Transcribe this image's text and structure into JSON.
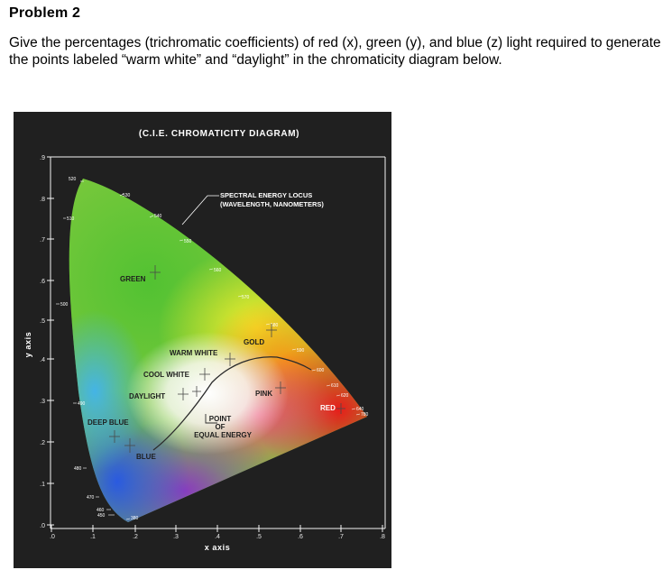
{
  "problem": {
    "title": "Problem 2",
    "text": "Give the percentages (trichromatic coefficients) of red (x), green (y), and blue (z) light required to generate the points labeled “warm white” and “daylight” in the chromaticity diagram below."
  },
  "diagram": {
    "title": "(C.I.E. CHROMATICITY DIAGRAM)",
    "xlabel": "x axis",
    "ylabel": "y axis",
    "x_ticks": [
      ".0",
      ".1",
      ".2",
      ".3",
      ".4",
      ".5",
      ".6",
      ".7",
      ".8"
    ],
    "y_ticks": [
      ".0",
      ".1",
      ".2",
      ".3",
      ".4",
      ".5",
      ".6",
      ".7",
      ".8",
      ".9"
    ],
    "locus_title_1": "SPECTRAL ENERGY LOCUS",
    "locus_title_2": "(WAVELENGTH, NANOMETERS)",
    "regions": {
      "green": "GREEN",
      "gold": "GOLD",
      "warm_white": "WARM WHITE",
      "cool_white": "COOL WHITE",
      "daylight": "DAYLIGHT",
      "pink": "PINK",
      "red": "RED",
      "deep_blue": "DEEP BLUE",
      "blue": "BLUE",
      "equal_energy_1": "POINT",
      "equal_energy_2": "OF",
      "equal_energy_3": "EQUAL ENERGY"
    },
    "wavelengths": {
      "w520": "520",
      "w530": "530",
      "w540": "540",
      "w510": "510",
      "w550": "550",
      "w560": "560",
      "w570": "570",
      "w500": "500",
      "w580": "580",
      "w590": "590",
      "w600": "600",
      "w610": "610",
      "w620": "620",
      "w640": "640",
      "w780": "780",
      "w490": "490",
      "w480": "480",
      "w470": "470",
      "w460": "460",
      "w450": "450",
      "w380": "380"
    }
  }
}
